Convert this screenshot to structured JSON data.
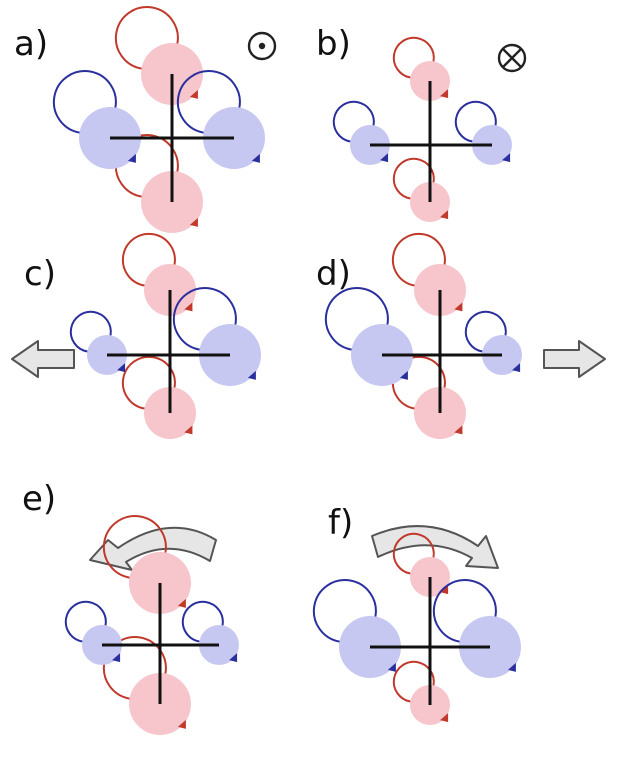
{
  "labels": {
    "a": "a)",
    "b": "b)",
    "c": "c)",
    "d": "d)",
    "e": "e)",
    "f": "f)"
  },
  "symbols": {
    "a": "out-of-page-symbol",
    "b": "into-page-symbol"
  },
  "colors": {
    "red_disc": "#f7c6cc",
    "blue_disc": "#c7c8f2",
    "red_arc": "#c0392b",
    "blue_arc": "#2a2f9e",
    "arrow_fill": "#e6e6e6"
  }
}
